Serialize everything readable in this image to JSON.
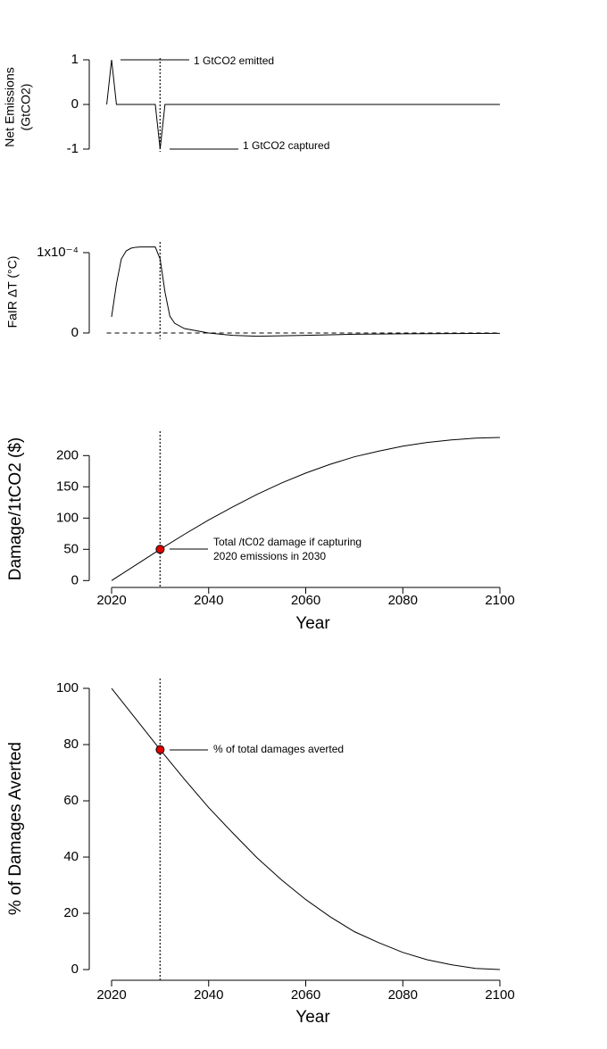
{
  "chart_data": [
    {
      "type": "line",
      "ylabel": [
        "Net Emissions",
        "(GtCO2)"
      ],
      "x": [
        2019,
        2020,
        2021,
        2029,
        2030,
        2031,
        2100
      ],
      "values": [
        0,
        1,
        0,
        0,
        -1,
        0,
        0
      ],
      "color": "#000000",
      "xlim": [
        2015.4,
        2100
      ],
      "ylim": [
        -1.06,
        1.04
      ],
      "yticks": [
        -1,
        0,
        1
      ],
      "vline": 2030,
      "annotations": [
        [
          "1 GtCO2 emitted"
        ],
        [
          "1 GtCO2 captured"
        ]
      ]
    },
    {
      "type": "line",
      "ylabel": [
        "FaIR ΔT (°C)"
      ],
      "x": [
        2020,
        2021,
        2022,
        2023,
        2024,
        2025,
        2026,
        2027,
        2028,
        2029,
        2030,
        2031,
        2032,
        2033,
        2035,
        2040,
        2045,
        2050,
        2060,
        2070,
        2080,
        2100
      ],
      "values": [
        2e-05,
        6.1e-05,
        9.2e-05,
        0.000102,
        0.0001055,
        0.0001067,
        0.000107,
        0.000107,
        0.000107,
        0.000107,
        9.2e-05,
        5.1e-05,
        2.1e-05,
        1.2e-05,
        5.5e-06,
        0,
        -3e-06,
        -4e-06,
        -3e-06,
        -1.5e-06,
        -1e-06,
        -5e-07
      ],
      "color": "#000000",
      "xlim": [
        2015.4,
        2100
      ],
      "ylim": [
        -7.8e-06,
        0.0001133
      ],
      "yticks": [
        0,
        {
          "value": 0.0001,
          "label": "1x10⁻⁴"
        }
      ],
      "vline": 2030,
      "hline": 0
    },
    {
      "type": "line",
      "ylabel": [
        "Damage/1tCO2 ($)"
      ],
      "xlabel": "Year",
      "x": [
        2020,
        2025,
        2030,
        2035,
        2040,
        2045,
        2050,
        2055,
        2060,
        2065,
        2070,
        2075,
        2080,
        2085,
        2090,
        2095,
        2100
      ],
      "values": [
        0,
        25,
        50,
        74,
        97,
        118,
        138,
        156,
        172,
        186,
        198,
        207,
        215,
        221,
        225,
        228,
        229
      ],
      "color": "#000000",
      "xlim": [
        2015.4,
        2100
      ],
      "ylim": [
        -11,
        239
      ],
      "xticks": [
        2020,
        2040,
        2060,
        2080,
        2100
      ],
      "yticks": [
        0,
        50,
        100,
        150,
        200
      ],
      "vline": 2030,
      "points": [
        {
          "x": 2030,
          "y": 50,
          "color": "#e00000"
        }
      ],
      "annotations": [
        [
          "Total /tC02 damage if capturing",
          " 2020 emissions in 2030"
        ]
      ]
    },
    {
      "type": "line",
      "ylabel": [
        "% of Damages Averted"
      ],
      "xlabel": "Year",
      "x": [
        2020,
        2025,
        2030,
        2035,
        2040,
        2045,
        2050,
        2055,
        2060,
        2065,
        2070,
        2075,
        2080,
        2085,
        2090,
        2095,
        2100
      ],
      "values": [
        100,
        89.1,
        78.2,
        67.7,
        57.6,
        48.5,
        39.7,
        31.9,
        24.9,
        18.8,
        13.5,
        9.6,
        6.1,
        3.5,
        1.7,
        0.4,
        0
      ],
      "color": "#000000",
      "xlim": [
        2015.4,
        2100
      ],
      "ylim": [
        -3.8,
        103.5
      ],
      "xticks": [
        2020,
        2040,
        2060,
        2080,
        2100
      ],
      "yticks": [
        0,
        20,
        40,
        60,
        80,
        100
      ],
      "vline": 2030,
      "points": [
        {
          "x": 2030,
          "y": 78.2,
          "color": "#e00000"
        }
      ],
      "annotations": [
        [
          "% of total damages averted"
        ]
      ]
    }
  ]
}
